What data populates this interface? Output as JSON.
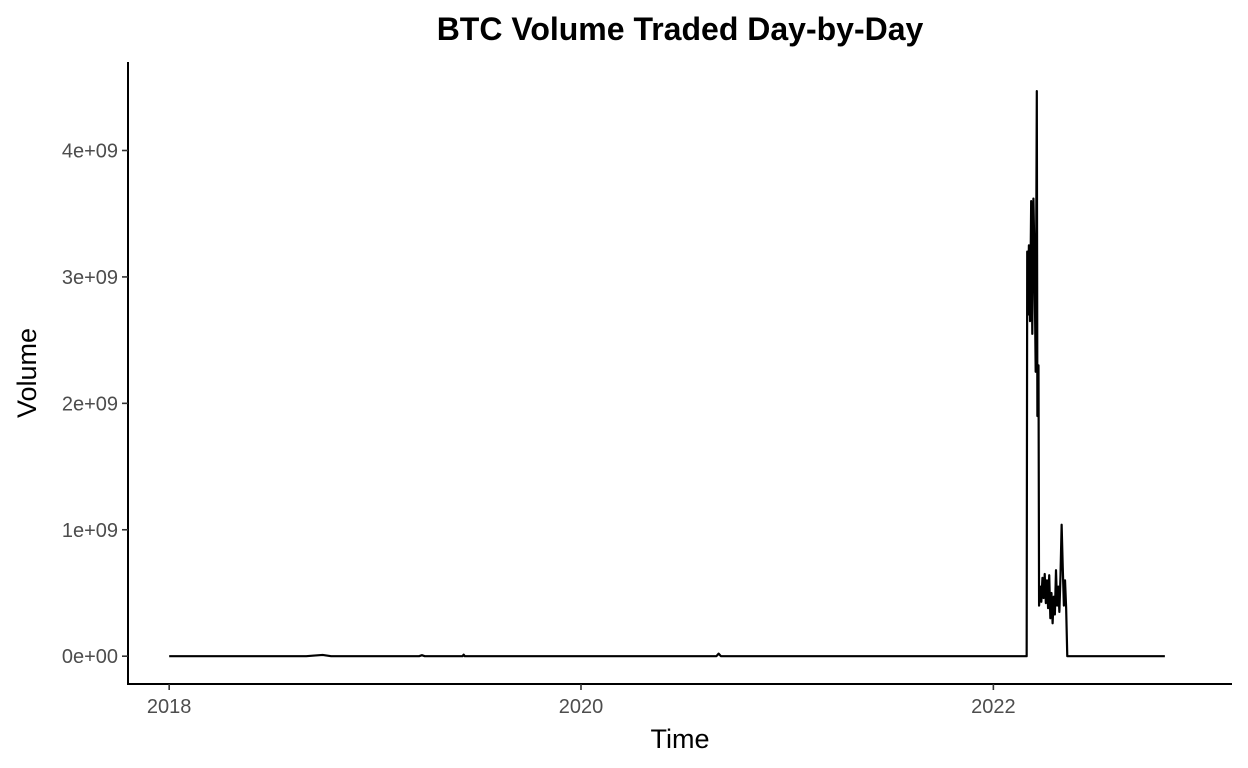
{
  "chart_data": {
    "type": "line",
    "title": "BTC Volume Traded Day-by-Day",
    "xlabel": "Time",
    "ylabel": "Volume",
    "x_type": "date",
    "xlim": [
      "2017-10-20",
      "2023-02-28"
    ],
    "ylim": [
      -220000000,
      4700000000
    ],
    "x_ticks": [
      {
        "value": "2018-01-01",
        "label": "2018"
      },
      {
        "value": "2020-01-01",
        "label": "2020"
      },
      {
        "value": "2022-01-01",
        "label": "2022"
      }
    ],
    "y_ticks": [
      {
        "value": 0,
        "label": "0e+00"
      },
      {
        "value": 1000000000,
        "label": "1e+09"
      },
      {
        "value": 2000000000,
        "label": "2e+09"
      },
      {
        "value": 3000000000,
        "label": "3e+09"
      },
      {
        "value": 4000000000,
        "label": "4e+09"
      }
    ],
    "grid": false,
    "legend": "none",
    "series": [
      {
        "color": "#000000",
        "x": [
          "2018-01-01",
          "2018-09-01",
          "2018-09-15",
          "2018-09-30",
          "2018-10-15",
          "2019-03-20",
          "2019-03-25",
          "2019-03-30",
          "2019-06-05",
          "2019-06-07",
          "2019-06-09",
          "2020-08-28",
          "2020-09-01",
          "2020-09-05",
          "2022-03-01",
          "2022-03-02",
          "2022-03-03",
          "2022-03-05",
          "2022-03-07",
          "2022-03-09",
          "2022-03-11",
          "2022-03-13",
          "2022-03-15",
          "2022-03-17",
          "2022-03-19",
          "2022-03-20",
          "2022-03-22",
          "2022-03-23",
          "2022-03-25",
          "2022-03-27",
          "2022-03-29",
          "2022-03-31",
          "2022-04-02",
          "2022-04-04",
          "2022-04-06",
          "2022-04-08",
          "2022-04-10",
          "2022-04-12",
          "2022-04-14",
          "2022-04-16",
          "2022-04-18",
          "2022-04-20",
          "2022-04-22",
          "2022-04-24",
          "2022-04-26",
          "2022-04-28",
          "2022-04-30",
          "2022-05-02",
          "2022-05-04",
          "2022-05-06",
          "2022-05-08",
          "2022-05-10",
          "2022-05-12",
          "2022-05-14",
          "2022-05-16",
          "2022-05-18",
          "2022-05-20",
          "2022-05-22",
          "2022-05-24",
          "2022-05-26",
          "2022-11-01"
        ],
        "values": [
          0,
          0,
          5000000,
          10000000,
          0,
          0,
          8000000,
          0,
          0,
          12000000,
          0,
          0,
          20000000,
          0,
          0,
          3200000000,
          2700000000,
          3250000000,
          2650000000,
          3600000000,
          2550000000,
          3620000000,
          3100000000,
          2250000000,
          4470000000,
          1900000000,
          2300000000,
          400000000,
          550000000,
          430000000,
          620000000,
          460000000,
          650000000,
          420000000,
          600000000,
          380000000,
          640000000,
          300000000,
          500000000,
          260000000,
          470000000,
          330000000,
          680000000,
          400000000,
          550000000,
          350000000,
          640000000,
          1040000000,
          700000000,
          400000000,
          600000000,
          380000000,
          0,
          0,
          0,
          0,
          0,
          0,
          0,
          0,
          0
        ]
      }
    ]
  }
}
